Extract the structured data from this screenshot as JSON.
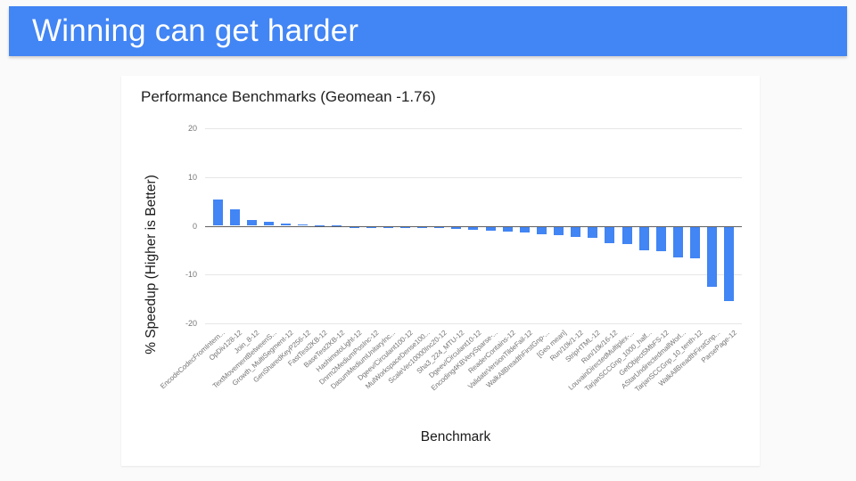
{
  "slide": {
    "title": "Winning can get harder"
  },
  "colors": {
    "header_bg": "#4285f4",
    "header_text": "#ffffff",
    "page_bg": "#fafafa",
    "card_bg": "#ffffff",
    "bar": "#4285f4",
    "gridline": "#e6e6e6",
    "zero_line": "#5f5f5f",
    "tick_text": "#757575",
    "title_text": "#212121"
  },
  "chart_data": {
    "type": "bar",
    "title": "Performance Benchmarks (Geomean -1.76)",
    "xlabel": "Benchmark",
    "ylabel": "% Speedup (Higher is Better)",
    "ylim": [
      -20,
      20
    ],
    "yticks": [
      20,
      10,
      0,
      -10,
      -20
    ],
    "grid": true,
    "legend": "none",
    "bar_color": "#4285f4",
    "geomean": -1.76,
    "categories": [
      "EncodeCodecFromIntern...",
      "OpDiv128-12",
      "Join_8-12",
      "TextMovementBetweenS...",
      "Growth_MultiSegment-12",
      "GenSharedKeyP256-12",
      "FastTest2KB-12",
      "BaseTest2KB-12",
      "HashimotoLight-12",
      "Dnrm2MediumPosInc-12",
      "DasumMediumUnitaryInc...",
      "Dgeev/Circulant100-12",
      "MulWorkspaceDense100...",
      "ScaleVec10000Inc20-12",
      "Sha3_224_MTU-12",
      "Dgeev/Circulant10-12",
      "Encoding4KBVerySparse-...",
      "ReaderContains-12",
      "ValidateVersionTildeFail-12",
      "WalkAllBreadthFirstGnp-...",
      "[Geo mean]",
      "Run/10k/1-12",
      "StripHTML-12",
      "Run/10k/16-12",
      "LouvainDirectedMultiplex-...",
      "TarjanSCCGnp_1000_half...",
      "GetObject5MbFS-12",
      "AStarUndirectedmallWorl...",
      "TarjanSCCGnp_10_tenth-12",
      "WalkAllBreadthFirstGnp...",
      "ParsePage-12"
    ],
    "values": [
      5.4,
      3.4,
      1.1,
      0.8,
      0.5,
      0.25,
      0.1,
      0.05,
      -0.05,
      -0.1,
      -0.15,
      -0.2,
      -0.25,
      -0.3,
      -0.45,
      -0.6,
      -0.75,
      -0.95,
      -1.2,
      -1.55,
      -1.76,
      -2.05,
      -2.35,
      -3.4,
      -3.55,
      -4.8,
      -5.1,
      -6.35,
      -6.55,
      -12.4,
      -15.3
    ]
  }
}
